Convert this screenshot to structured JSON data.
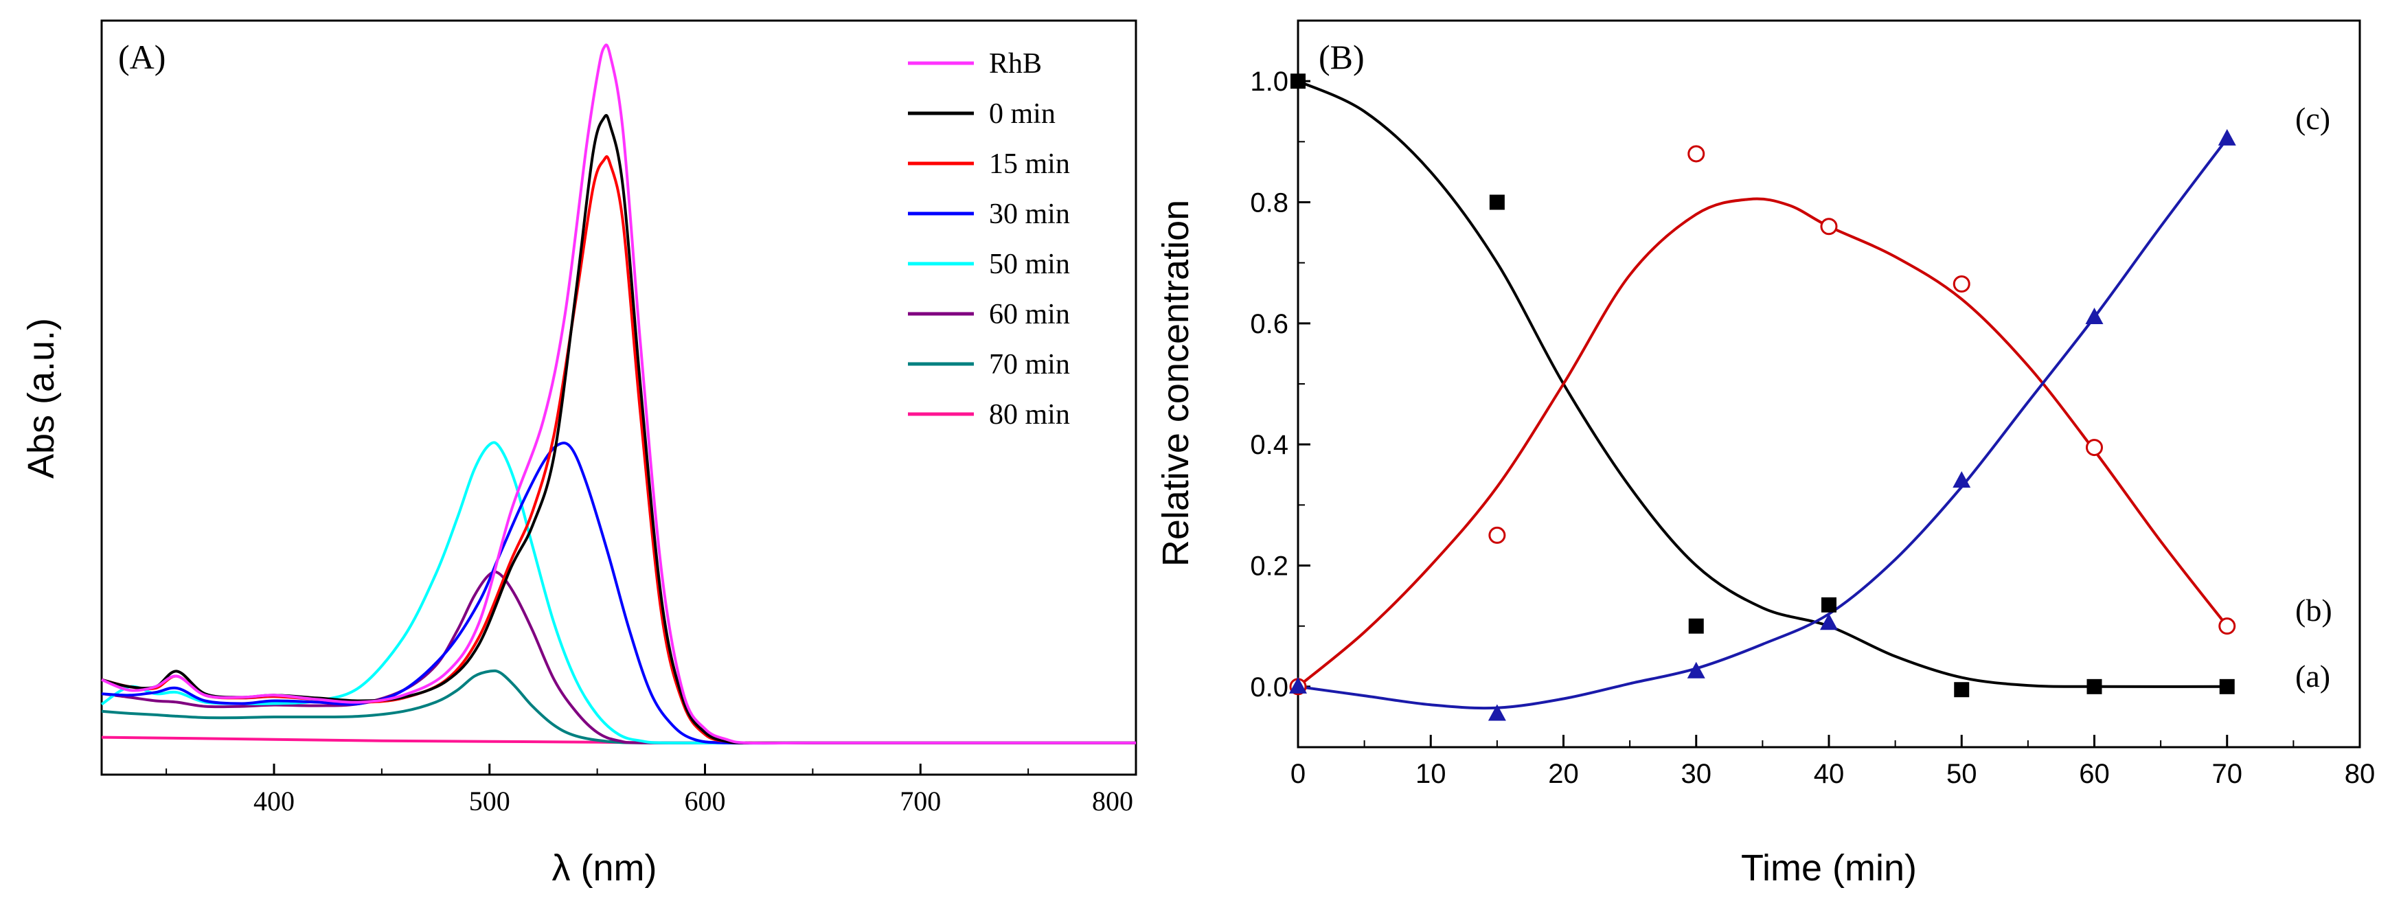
{
  "chart_data": [
    {
      "type": "line",
      "panel_label": "(A)",
      "title": "",
      "xlabel": "λ (nm)",
      "ylabel": "Abs (a.u.)",
      "xlim": [
        320,
        800
      ],
      "ylim": [
        0,
        1.05
      ],
      "xticks": [
        400,
        500,
        600,
        700,
        800
      ],
      "yticks_shown": false,
      "legend": "top-right",
      "series": [
        {
          "name": "RhB",
          "color": "#ff33ff",
          "points": [
            [
              320,
              0.1
            ],
            [
              333,
              0.085
            ],
            [
              345,
              0.09
            ],
            [
              355,
              0.105
            ],
            [
              368,
              0.078
            ],
            [
              385,
              0.075
            ],
            [
              400,
              0.078
            ],
            [
              420,
              0.072
            ],
            [
              440,
              0.068
            ],
            [
              460,
              0.078
            ],
            [
              480,
              0.11
            ],
            [
              495,
              0.18
            ],
            [
              510,
              0.34
            ],
            [
              525,
              0.47
            ],
            [
              535,
              0.62
            ],
            [
              545,
              0.86
            ],
            [
              550,
              0.96
            ],
            [
              553,
              1.0
            ],
            [
              556,
              0.99
            ],
            [
              562,
              0.88
            ],
            [
              570,
              0.58
            ],
            [
              580,
              0.25
            ],
            [
              590,
              0.08
            ],
            [
              600,
              0.03
            ],
            [
              610,
              0.015
            ],
            [
              620,
              0.01
            ],
            [
              650,
              0.01
            ],
            [
              700,
              0.01
            ],
            [
              800,
              0.01
            ]
          ]
        },
        {
          "name": "0 min",
          "color": "#000000",
          "points": [
            [
              320,
              0.1
            ],
            [
              333,
              0.09
            ],
            [
              345,
              0.09
            ],
            [
              355,
              0.112
            ],
            [
              368,
              0.08
            ],
            [
              385,
              0.075
            ],
            [
              400,
              0.078
            ],
            [
              420,
              0.074
            ],
            [
              440,
              0.07
            ],
            [
              460,
              0.075
            ],
            [
              480,
              0.098
            ],
            [
              495,
              0.15
            ],
            [
              510,
              0.26
            ],
            [
              520,
              0.32
            ],
            [
              530,
              0.42
            ],
            [
              540,
              0.65
            ],
            [
              548,
              0.85
            ],
            [
              553,
              0.9
            ],
            [
              556,
              0.89
            ],
            [
              562,
              0.8
            ],
            [
              570,
              0.52
            ],
            [
              580,
              0.21
            ],
            [
              590,
              0.07
            ],
            [
              600,
              0.025
            ],
            [
              610,
              0.012
            ],
            [
              620,
              0.01
            ],
            [
              650,
              0.01
            ],
            [
              700,
              0.01
            ],
            [
              800,
              0.01
            ]
          ]
        },
        {
          "name": "15 min",
          "color": "#ff0000",
          "points": [
            [
              320,
              0.1
            ],
            [
              333,
              0.09
            ],
            [
              345,
              0.088
            ],
            [
              355,
              0.105
            ],
            [
              368,
              0.078
            ],
            [
              385,
              0.074
            ],
            [
              400,
              0.076
            ],
            [
              420,
              0.072
            ],
            [
              440,
              0.068
            ],
            [
              460,
              0.074
            ],
            [
              480,
              0.1
            ],
            [
              495,
              0.16
            ],
            [
              510,
              0.27
            ],
            [
              520,
              0.34
            ],
            [
              530,
              0.45
            ],
            [
              540,
              0.64
            ],
            [
              548,
              0.8
            ],
            [
              553,
              0.84
            ],
            [
              556,
              0.835
            ],
            [
              562,
              0.75
            ],
            [
              570,
              0.48
            ],
            [
              580,
              0.19
            ],
            [
              590,
              0.065
            ],
            [
              600,
              0.022
            ],
            [
              610,
              0.012
            ],
            [
              620,
              0.01
            ],
            [
              650,
              0.01
            ],
            [
              700,
              0.01
            ],
            [
              800,
              0.01
            ]
          ]
        },
        {
          "name": "30 min",
          "color": "#0000ff",
          "points": [
            [
              320,
              0.08
            ],
            [
              333,
              0.078
            ],
            [
              345,
              0.082
            ],
            [
              355,
              0.088
            ],
            [
              368,
              0.07
            ],
            [
              385,
              0.066
            ],
            [
              400,
              0.07
            ],
            [
              420,
              0.068
            ],
            [
              440,
              0.066
            ],
            [
              460,
              0.085
            ],
            [
              480,
              0.14
            ],
            [
              495,
              0.21
            ],
            [
              505,
              0.28
            ],
            [
              515,
              0.35
            ],
            [
              525,
              0.41
            ],
            [
              532,
              0.435
            ],
            [
              538,
              0.43
            ],
            [
              545,
              0.38
            ],
            [
              555,
              0.28
            ],
            [
              565,
              0.17
            ],
            [
              575,
              0.08
            ],
            [
              585,
              0.035
            ],
            [
              595,
              0.015
            ],
            [
              610,
              0.01
            ],
            [
              650,
              0.01
            ],
            [
              700,
              0.01
            ],
            [
              800,
              0.01
            ]
          ]
        },
        {
          "name": "50 min",
          "color": "#00ffff",
          "points": [
            [
              320,
              0.065
            ],
            [
              333,
              0.09
            ],
            [
              345,
              0.08
            ],
            [
              355,
              0.082
            ],
            [
              368,
              0.068
            ],
            [
              385,
              0.066
            ],
            [
              400,
              0.066
            ],
            [
              420,
              0.07
            ],
            [
              440,
              0.09
            ],
            [
              460,
              0.16
            ],
            [
              475,
              0.25
            ],
            [
              485,
              0.33
            ],
            [
              493,
              0.4
            ],
            [
              500,
              0.435
            ],
            [
              505,
              0.43
            ],
            [
              512,
              0.38
            ],
            [
              520,
              0.29
            ],
            [
              530,
              0.18
            ],
            [
              540,
              0.1
            ],
            [
              550,
              0.05
            ],
            [
              560,
              0.022
            ],
            [
              570,
              0.013
            ],
            [
              585,
              0.01
            ],
            [
              650,
              0.01
            ],
            [
              700,
              0.01
            ],
            [
              800,
              0.01
            ]
          ]
        },
        {
          "name": "60 min",
          "color": "#800080",
          "points": [
            [
              320,
              0.08
            ],
            [
              333,
              0.075
            ],
            [
              345,
              0.07
            ],
            [
              355,
              0.068
            ],
            [
              368,
              0.062
            ],
            [
              385,
              0.062
            ],
            [
              400,
              0.064
            ],
            [
              420,
              0.063
            ],
            [
              440,
              0.066
            ],
            [
              460,
              0.085
            ],
            [
              475,
              0.12
            ],
            [
              485,
              0.17
            ],
            [
              493,
              0.22
            ],
            [
              500,
              0.25
            ],
            [
              505,
              0.25
            ],
            [
              512,
              0.22
            ],
            [
              520,
              0.17
            ],
            [
              530,
              0.1
            ],
            [
              540,
              0.055
            ],
            [
              550,
              0.025
            ],
            [
              560,
              0.013
            ],
            [
              575,
              0.01
            ],
            [
              650,
              0.01
            ],
            [
              700,
              0.01
            ],
            [
              800,
              0.01
            ]
          ]
        },
        {
          "name": "70 min",
          "color": "#008080",
          "points": [
            [
              320,
              0.055
            ],
            [
              333,
              0.052
            ],
            [
              345,
              0.05
            ],
            [
              355,
              0.048
            ],
            [
              368,
              0.046
            ],
            [
              385,
              0.046
            ],
            [
              400,
              0.047
            ],
            [
              420,
              0.047
            ],
            [
              440,
              0.048
            ],
            [
              460,
              0.055
            ],
            [
              475,
              0.068
            ],
            [
              485,
              0.085
            ],
            [
              493,
              0.105
            ],
            [
              500,
              0.112
            ],
            [
              505,
              0.11
            ],
            [
              512,
              0.09
            ],
            [
              520,
              0.062
            ],
            [
              530,
              0.035
            ],
            [
              540,
              0.02
            ],
            [
              555,
              0.012
            ],
            [
              575,
              0.01
            ],
            [
              650,
              0.01
            ],
            [
              700,
              0.01
            ],
            [
              800,
              0.01
            ]
          ]
        },
        {
          "name": "80 min",
          "color": "#ff1493",
          "points": [
            [
              320,
              0.018
            ],
            [
              400,
              0.015
            ],
            [
              450,
              0.013
            ],
            [
              500,
              0.012
            ],
            [
              550,
              0.011
            ],
            [
              600,
              0.01
            ],
            [
              700,
              0.01
            ],
            [
              800,
              0.01
            ]
          ]
        }
      ]
    },
    {
      "type": "scatter",
      "panel_label": "(B)",
      "title": "",
      "xlabel": "Time (min)",
      "ylabel": "Relative concentration",
      "xlim": [
        0,
        80
      ],
      "ylim": [
        -0.1,
        1.1
      ],
      "xticks": [
        0,
        10,
        20,
        30,
        40,
        50,
        60,
        70,
        80
      ],
      "yticks": [
        0.0,
        0.2,
        0.4,
        0.6,
        0.8,
        1.0
      ],
      "ytick_labels": [
        "0.0",
        "0.2",
        "0.4",
        "0.6",
        "0.8",
        "1.0"
      ],
      "series": [
        {
          "name": "(a)",
          "label": "(a)",
          "marker": "square",
          "color": "#000000",
          "x": [
            0,
            15,
            30,
            40,
            50,
            60,
            70
          ],
          "y": [
            1.0,
            0.8,
            0.1,
            0.135,
            -0.005,
            0.0,
            0.0
          ],
          "fit": [
            [
              0,
              1.0
            ],
            [
              5,
              0.95
            ],
            [
              10,
              0.85
            ],
            [
              15,
              0.7
            ],
            [
              20,
              0.5
            ],
            [
              25,
              0.33
            ],
            [
              30,
              0.2
            ],
            [
              35,
              0.13
            ],
            [
              40,
              0.1
            ],
            [
              45,
              0.05
            ],
            [
              50,
              0.015
            ],
            [
              55,
              0.002
            ],
            [
              60,
              0.0
            ],
            [
              70,
              0.0
            ]
          ]
        },
        {
          "name": "(b)",
          "label": "(b)",
          "marker": "open-circle",
          "color": "#cc0000",
          "x": [
            0,
            15,
            30,
            40,
            50,
            60,
            70
          ],
          "y": [
            0.0,
            0.25,
            0.88,
            0.76,
            0.665,
            0.395,
            0.1
          ],
          "fit": [
            [
              0,
              0.0
            ],
            [
              5,
              0.09
            ],
            [
              10,
              0.2
            ],
            [
              15,
              0.33
            ],
            [
              20,
              0.5
            ],
            [
              25,
              0.68
            ],
            [
              30,
              0.78
            ],
            [
              34,
              0.805
            ],
            [
              37,
              0.795
            ],
            [
              40,
              0.76
            ],
            [
              45,
              0.71
            ],
            [
              50,
              0.64
            ],
            [
              55,
              0.53
            ],
            [
              60,
              0.39
            ],
            [
              65,
              0.24
            ],
            [
              70,
              0.1
            ]
          ]
        },
        {
          "name": "(c)",
          "label": "(c)",
          "marker": "triangle",
          "color": "#1a1aaa",
          "x": [
            0,
            15,
            30,
            40,
            50,
            60,
            70
          ],
          "y": [
            0.0,
            -0.045,
            0.025,
            0.105,
            0.34,
            0.61,
            0.905
          ],
          "fit": [
            [
              0,
              0.0
            ],
            [
              5,
              -0.015
            ],
            [
              10,
              -0.03
            ],
            [
              15,
              -0.035
            ],
            [
              20,
              -0.02
            ],
            [
              25,
              0.005
            ],
            [
              30,
              0.03
            ],
            [
              35,
              0.07
            ],
            [
              40,
              0.12
            ],
            [
              45,
              0.21
            ],
            [
              50,
              0.33
            ],
            [
              55,
              0.47
            ],
            [
              60,
              0.61
            ],
            [
              65,
              0.76
            ],
            [
              70,
              0.905
            ]
          ]
        }
      ]
    }
  ]
}
